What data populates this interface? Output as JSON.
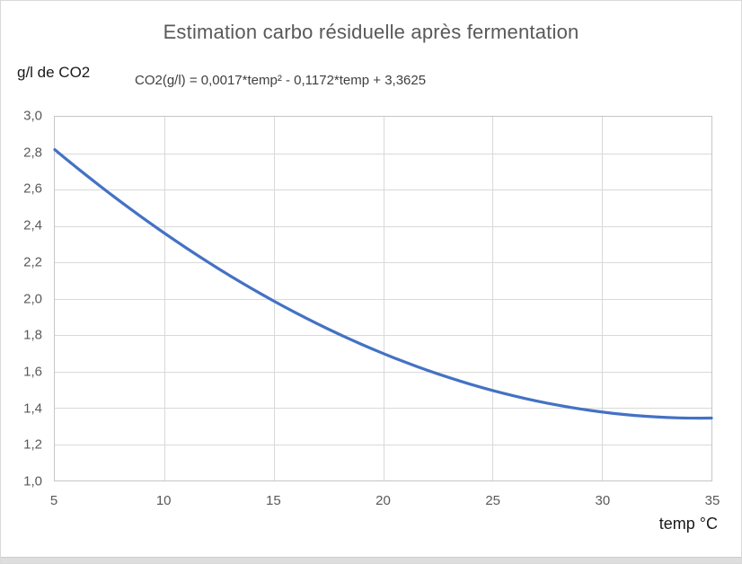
{
  "title": "Estimation carbo résiduelle après fermentation",
  "y_axis_label": "g/l de CO2",
  "x_axis_label": "temp °C",
  "formula_text": "CO2(g/l) = 0,0017*temp² - 0,1172*temp + 3,3625",
  "chart_data": {
    "type": "line",
    "title": "Estimation carbo résiduelle après fermentation",
    "xlabel": "temp °C",
    "ylabel": "g/l de CO2",
    "xlim": [
      5,
      35
    ],
    "ylim": [
      1.0,
      3.0
    ],
    "x_ticks": [
      "5",
      "10",
      "15",
      "20",
      "25",
      "30",
      "35"
    ],
    "y_ticks": [
      "3,0",
      "2,8",
      "2,6",
      "2,4",
      "2,2",
      "2,0",
      "1,8",
      "1,6",
      "1,4",
      "1,2",
      "1,0"
    ],
    "x_tick_step": 5,
    "y_tick_step": 0.2,
    "grid": true,
    "legend": "none",
    "line_color": "#4472C4",
    "line_width": 3.25,
    "formula": {
      "a": 0.0017,
      "b": -0.1172,
      "c": 3.3625
    },
    "curve_domain": {
      "start": 5,
      "end": 35,
      "step": 0.5
    },
    "series": [
      {
        "name": "CO2 g/l",
        "x": [
          5,
          10,
          15,
          20,
          25,
          30,
          35
        ],
        "y": [
          2.82,
          2.36,
          1.99,
          1.7,
          1.5,
          1.38,
          1.34
        ]
      }
    ]
  }
}
